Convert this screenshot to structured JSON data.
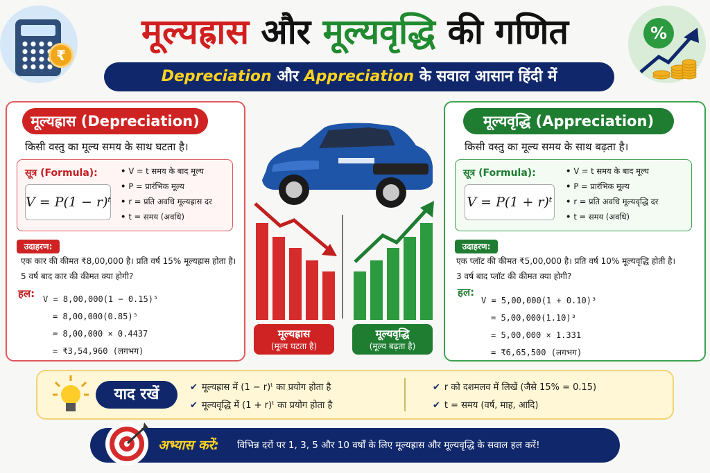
{
  "header": {
    "title_part1": "मूल्यह्रास",
    "title_part2": "और",
    "title_part3": "मूल्यवृद्धि",
    "title_part4": "की गणित",
    "subtitle_depreciation": "Depreciation",
    "subtitle_aur": "और",
    "subtitle_appreciation": "Appreciation",
    "subtitle_rest": "के सवाल आसान हिंदी में"
  },
  "icons": {
    "rupee_symbol": "₹",
    "percent_symbol": "%"
  },
  "depreciation": {
    "heading": "मूल्यह्रास (Depreciation)",
    "description": "किसी वस्तु का मूल्य समय के साथ घटता है।",
    "formula_label": "सूत्र (Formula):",
    "formula": "V = P(1 − r)ᵗ",
    "bullets": [
      "V = t समय के बाद मूल्य",
      "P = प्रारंभिक मूल्य",
      "r = प्रति अवधि मूल्यह्रास दर",
      "t = समय (अवधि)"
    ],
    "example_tag": "उदाहरण:",
    "example_line1": "एक कार की कीमत ₹8,00,000 है। प्रति वर्ष 15% मूल्यह्रास होता है।",
    "example_line2": "5 वर्ष बाद कार की कीमत क्या होगी?",
    "solution_label": "हल:",
    "steps": [
      "V = 8,00,000(1 − 0.15)⁵",
      "= 8,00,000(0.85)⁵",
      "= 8,00,000 × 0.4437",
      "= ₹3,54,960 (लगभग)"
    ]
  },
  "appreciation": {
    "heading": "मूल्यवृद्धि (Appreciation)",
    "description": "किसी वस्तु का मूल्य समय के साथ बढ़ता है।",
    "formula_label": "सूत्र (Formula):",
    "formula": "V = P(1 + r)ᵗ",
    "bullets": [
      "V = t समय के बाद मूल्य",
      "P = प्रारंभिक मूल्य",
      "r = प्रति अवधि मूल्यवृद्धि दर",
      "t = समय (अवधि)"
    ],
    "example_tag": "उदाहरण:",
    "example_line1": "एक प्लॉट की कीमत ₹5,00,000 है। प्रति वर्ष 10% मूल्यवृद्धि होती है।",
    "example_line2": "3 वर्ष बाद प्लॉट की कीमत क्या होगी?",
    "solution_label": "हल:",
    "steps": [
      "V = 5,00,000(1 + 0.10)³",
      "= 5,00,000(1.10)³",
      "= 5,00,000 × 1.331",
      "= ₹6,65,500 (लगभग)"
    ]
  },
  "center": {
    "down_label_title": "मूल्यह्रास",
    "down_label_sub": "(मूल्य घटता है)",
    "up_label_title": "मूल्यवृद्धि",
    "up_label_sub": "(मूल्य बढ़ता है)"
  },
  "remember": {
    "title": "याद रखें",
    "items": [
      "मूल्यह्रास में (1 − r)ᵗ का प्रयोग होता है",
      "मूल्यवृद्धि में (1 + r)ᵗ का प्रयोग होता है",
      "r को दशमलव में लिखें (जैसे 15% = 0.15)",
      "t = समय (वर्ष, माह, आदि)"
    ],
    "check": "✔"
  },
  "practice": {
    "label": "अभ्यास करें:",
    "text": "विभिन्न दरों पर 1, 3, 5 और 10 वर्षों के लिए मूल्यह्रास और मूल्यवृद्धि के सवाल हल करें!"
  },
  "colors": {
    "red": "#cf2323",
    "green": "#1f7d32",
    "navy": "#10286b",
    "yellow": "#ffd21f"
  }
}
